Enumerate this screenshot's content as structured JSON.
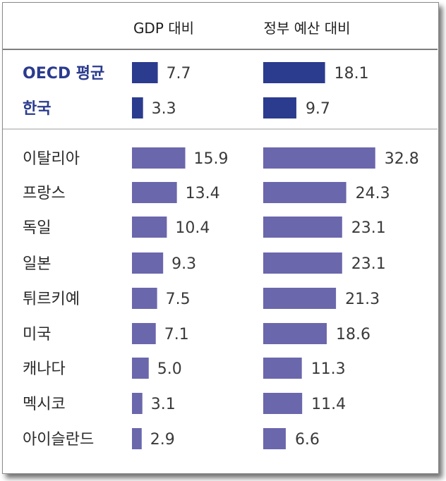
{
  "chart_data": {
    "type": "bar",
    "series": [
      {
        "name": "GDP 대비"
      },
      {
        "name": "정부 예산 대비"
      }
    ],
    "highlight_categories": [
      "OECD 평균",
      "한국"
    ],
    "categories": [
      "이탈리아",
      "프랑스",
      "독일",
      "일본",
      "튀르키예",
      "미국",
      "캐나다",
      "멕시코",
      "아이슬란드"
    ],
    "rows": [
      {
        "label": "OECD 평균",
        "gdp": 7.7,
        "budget": 18.1,
        "highlight": true
      },
      {
        "label": "한국",
        "gdp": 3.3,
        "budget": 9.7,
        "highlight": true
      },
      {
        "label": "이탈리아",
        "gdp": 15.9,
        "budget": 32.8
      },
      {
        "label": "프랑스",
        "gdp": 13.4,
        "budget": 24.3
      },
      {
        "label": "독일",
        "gdp": 10.4,
        "budget": 23.1
      },
      {
        "label": "일본",
        "gdp": 9.3,
        "budget": 23.1
      },
      {
        "label": "튀르키예",
        "gdp": 7.5,
        "budget": 21.3
      },
      {
        "label": "미국",
        "gdp": 7.1,
        "budget": 18.6
      },
      {
        "label": "캐나다",
        "gdp": 5.0,
        "budget": 11.3
      },
      {
        "label": "멕시코",
        "gdp": 3.1,
        "budget": 11.4
      },
      {
        "label": "아이슬란드",
        "gdp": 2.9,
        "budget": 6.6
      }
    ],
    "colors": {
      "highlight": "#2b3b8e",
      "country": "#6a67ac"
    },
    "grid": false,
    "legend": "top"
  }
}
